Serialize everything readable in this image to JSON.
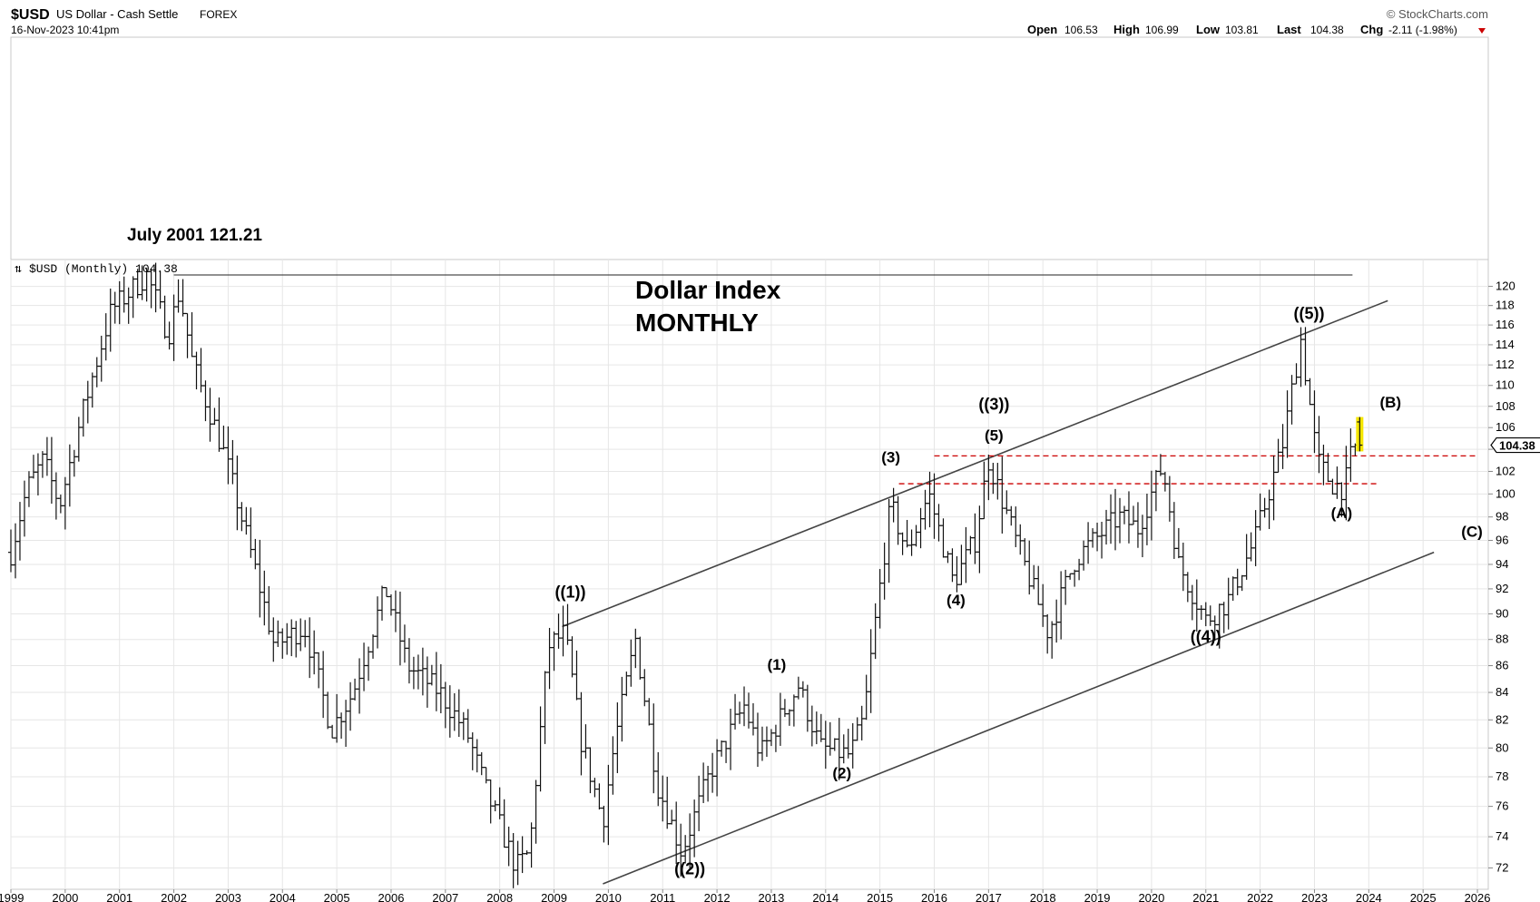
{
  "header": {
    "symbol": "$USD",
    "name": "US Dollar - Cash Settle",
    "exchange": "FOREX",
    "datetime": "16-Nov-2023 10:41pm",
    "credit": "© StockCharts.com",
    "open_label": "Open",
    "open": "106.53",
    "high_label": "High",
    "high": "106.99",
    "low_label": "Low",
    "low": "103.81",
    "last_label": "Last",
    "last": "104.38",
    "chg_label": "Chg",
    "chg": "-2.11 (-1.98%)",
    "chg_color": "#cc0000"
  },
  "panel": {
    "legend": "$USD (Monthly) 104.38",
    "last_price_tag": "104.38"
  },
  "chart_data": {
    "type": "ohlc",
    "title": "Dollar Index",
    "subtitle": "MONTHLY",
    "interval": "monthly",
    "y_scale": "log",
    "ylim": [
      71,
      121.5
    ],
    "y_ticks": [
      72,
      74,
      76,
      78,
      80,
      82,
      84,
      86,
      88,
      90,
      92,
      94,
      96,
      98,
      100,
      102,
      104,
      106,
      108,
      110,
      112,
      114,
      116,
      118,
      120
    ],
    "x_ticks": [
      "1999",
      "2000",
      "2001",
      "2002",
      "2003",
      "2004",
      "2005",
      "2006",
      "2007",
      "2008",
      "2009",
      "2010",
      "2011",
      "2012",
      "2013",
      "2014",
      "2015",
      "2016",
      "2017",
      "2018",
      "2019",
      "2020",
      "2021",
      "2022",
      "2023",
      "2024",
      "2025",
      "2026"
    ],
    "x_range": [
      1999.0,
      2026.2
    ],
    "price_path": [
      [
        1999.0,
        95.0
      ],
      [
        1999.3,
        100.5
      ],
      [
        1999.6,
        103.0
      ],
      [
        1999.9,
        99.0
      ],
      [
        2000.3,
        107.0
      ],
      [
        2000.85,
        117.5
      ],
      [
        2001.5,
        121.21
      ],
      [
        2001.9,
        115.0
      ],
      [
        2002.1,
        119.5
      ],
      [
        2002.35,
        112.0
      ],
      [
        2002.9,
        104.0
      ],
      [
        2003.3,
        97.0
      ],
      [
        2003.85,
        87.5
      ],
      [
        2004.4,
        89.0
      ],
      [
        2004.9,
        81.3
      ],
      [
        2005.3,
        84.0
      ],
      [
        2005.9,
        92.0
      ],
      [
        2006.3,
        86.0
      ],
      [
        2006.9,
        84.0
      ],
      [
        2007.4,
        81.0
      ],
      [
        2007.8,
        76.5
      ],
      [
        2008.3,
        72.0
      ],
      [
        2008.55,
        73.0
      ],
      [
        2008.9,
        87.5
      ],
      [
        2009.2,
        88.5
      ],
      [
        2009.5,
        80.5
      ],
      [
        2009.9,
        75.0
      ],
      [
        2010.1,
        80.0
      ],
      [
        2010.5,
        88.0
      ],
      [
        2010.9,
        77.5
      ],
      [
        2011.35,
        73.0
      ],
      [
        2011.9,
        78.5
      ],
      [
        2012.5,
        83.0
      ],
      [
        2012.8,
        79.5
      ],
      [
        2013.5,
        84.5
      ],
      [
        2013.9,
        80.0
      ],
      [
        2014.45,
        79.5
      ],
      [
        2014.7,
        82.0
      ],
      [
        2015.2,
        99.0
      ],
      [
        2015.5,
        95.0
      ],
      [
        2015.9,
        100.0
      ],
      [
        2016.35,
        92.5
      ],
      [
        2016.75,
        96.0
      ],
      [
        2017.0,
        103.0
      ],
      [
        2017.5,
        96.0
      ],
      [
        2018.1,
        88.5
      ],
      [
        2018.6,
        94.5
      ],
      [
        2019.4,
        98.0
      ],
      [
        2019.75,
        97.0
      ],
      [
        2020.2,
        102.5
      ],
      [
        2020.5,
        94.0
      ],
      [
        2021.0,
        89.5
      ],
      [
        2021.4,
        91.0
      ],
      [
        2021.9,
        96.0
      ],
      [
        2022.4,
        104.0
      ],
      [
        2022.75,
        114.5
      ],
      [
        2023.05,
        103.0
      ],
      [
        2023.3,
        101.0
      ],
      [
        2023.55,
        100.5
      ],
      [
        2023.7,
        104.0
      ],
      [
        2023.87,
        104.38
      ]
    ],
    "seed": 7,
    "trendlines": [
      {
        "kind": "channel-upper",
        "from": [
          2009.15,
          89.0
        ],
        "to": [
          2024.35,
          118.5
        ]
      },
      {
        "kind": "channel-lower",
        "from": [
          2009.9,
          71.0
        ],
        "to": [
          2025.2,
          95.0
        ]
      },
      {
        "kind": "july-2001-high",
        "from": [
          2002.0,
          121.21
        ],
        "to": [
          2023.7,
          121.21
        ]
      }
    ],
    "horizontal_levels": [
      {
        "value": 103.4,
        "from": 2016.0,
        "to": 2026.0,
        "color": "#cc0000",
        "style": "dashed"
      },
      {
        "value": 100.9,
        "from": 2015.35,
        "to": 2024.2,
        "color": "#cc0000",
        "style": "dashed"
      }
    ],
    "highlight": {
      "x": 2023.87,
      "low": 103.81,
      "high": 106.99,
      "color": "#f5e600"
    },
    "annotations": [
      {
        "text": "((1))",
        "x": 2009.3,
        "y": 91.3,
        "size": 18
      },
      {
        "text": "((2))",
        "x": 2011.5,
        "y": 71.6,
        "size": 18
      },
      {
        "text": "(1)",
        "x": 2013.1,
        "y": 85.7,
        "size": 17
      },
      {
        "text": "(2)",
        "x": 2014.3,
        "y": 77.9,
        "size": 17
      },
      {
        "text": "(3)",
        "x": 2015.2,
        "y": 102.8,
        "size": 17
      },
      {
        "text": "(4)",
        "x": 2016.4,
        "y": 90.7,
        "size": 17
      },
      {
        "text": "(5)",
        "x": 2017.1,
        "y": 104.8,
        "size": 17
      },
      {
        "text": "((3))",
        "x": 2017.1,
        "y": 107.7,
        "size": 18
      },
      {
        "text": "((4))",
        "x": 2021.0,
        "y": 87.8,
        "size": 18
      },
      {
        "text": "((5))",
        "x": 2022.9,
        "y": 116.6,
        "size": 18
      },
      {
        "text": "(A)",
        "x": 2023.5,
        "y": 97.9,
        "size": 17
      },
      {
        "text": "(B)",
        "x": 2024.4,
        "y": 107.9,
        "size": 17
      },
      {
        "text": "(C)",
        "x": 2025.9,
        "y": 96.3,
        "size": 17
      }
    ],
    "note": "July 2001 121.21"
  },
  "colors": {
    "bars": "#111111",
    "grid": "#e6e6e6",
    "frame": "#c8c8c8",
    "trend": "#444444"
  }
}
